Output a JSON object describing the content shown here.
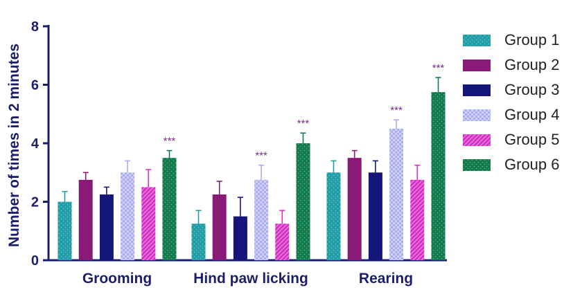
{
  "chart_data": {
    "type": "bar",
    "categories": [
      "Grooming",
      "Hind paw licking",
      "Rearing"
    ],
    "ylabel": "Number of times in 2 minutes",
    "xlabel": "",
    "ylim": [
      0,
      8
    ],
    "yticks": [
      "0",
      "2",
      "4",
      "6",
      "8"
    ],
    "legend_position": "right",
    "series": [
      {
        "name": "Group 1",
        "color": "#1f9ea8",
        "pattern": "dots",
        "values": [
          2.0,
          1.25,
          3.0
        ],
        "errors": [
          0.35,
          0.45,
          0.4
        ]
      },
      {
        "name": "Group 2",
        "color": "#8a1a78",
        "pattern": "solid",
        "values": [
          2.75,
          2.25,
          3.5
        ],
        "errors": [
          0.25,
          0.45,
          0.25
        ]
      },
      {
        "name": "Group 3",
        "color": "#14167a",
        "pattern": "solid",
        "values": [
          2.25,
          1.5,
          3.0
        ],
        "errors": [
          0.25,
          0.65,
          0.4
        ]
      },
      {
        "name": "Group 4",
        "color": "#a9acee",
        "pattern": "checker",
        "values": [
          3.0,
          2.75,
          4.5
        ],
        "errors": [
          0.4,
          0.5,
          0.3
        ]
      },
      {
        "name": "Group 5",
        "color": "#d52fc6",
        "pattern": "stripes",
        "values": [
          2.5,
          1.25,
          2.75
        ],
        "errors": [
          0.6,
          0.45,
          0.5
        ]
      },
      {
        "name": "Group 6",
        "color": "#0f7a4a",
        "pattern": "dots",
        "values": [
          3.5,
          4.0,
          5.75
        ],
        "errors": [
          0.25,
          0.35,
          0.5
        ]
      }
    ],
    "annotations": [
      {
        "category": "Grooming",
        "series": "Group 6",
        "text": "***"
      },
      {
        "category": "Hind paw licking",
        "series": "Group 4",
        "text": "***"
      },
      {
        "category": "Hind paw licking",
        "series": "Group 6",
        "text": "***"
      },
      {
        "category": "Rearing",
        "series": "Group 4",
        "text": "***"
      },
      {
        "category": "Rearing",
        "series": "Group 6",
        "text": "***"
      }
    ],
    "annotation_color": "#7b2a8c",
    "axis_color": "#1b1f6a"
  }
}
